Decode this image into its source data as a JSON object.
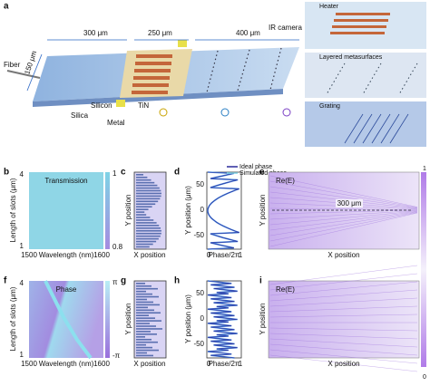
{
  "panel_a": {
    "label": "a",
    "fiber": "Fiber",
    "dim_1": "300 μm",
    "dim_2": "250 μm",
    "dim_3": "400 μm",
    "camera": "IR camera",
    "width": "150 μm",
    "silicon": "Silicon",
    "silica": "Silica",
    "metal": "Metal",
    "tin": "TiN",
    "insets": [
      "Heater",
      "Layered metasurfaces",
      "Grating"
    ]
  },
  "panel_b": {
    "label": "b",
    "title": "Transmission",
    "y_label": "Length of slots (μm)",
    "y_ticks": [
      4,
      1
    ],
    "x_ticks": [
      1500,
      1600
    ],
    "x_label": "Wavelength (nm)",
    "colorbar": [
      1,
      0.8
    ]
  },
  "panel_c": {
    "label": "c",
    "y_label": "Y position",
    "x_label": "X position"
  },
  "panel_d": {
    "label": "d",
    "legend": [
      "Ideal phase",
      "Simulated phase"
    ],
    "y_label": "Y position (μm)",
    "y_ticks": [
      50,
      0,
      -50
    ],
    "x_ticks": [
      0,
      1
    ],
    "x_label": "Phase/2π"
  },
  "panel_e": {
    "label": "e",
    "title": "Re(E)",
    "annotation": "300 μm",
    "y_label": "Y position",
    "x_label": "X position",
    "colorbar": [
      1,
      0
    ]
  },
  "panel_f": {
    "label": "f",
    "title": "Phase",
    "y_label": "Length of slots (μm)",
    "y_ticks": [
      4,
      1
    ],
    "x_ticks": [
      1500,
      1600
    ],
    "x_label": "Wavelength (nm)",
    "colorbar": [
      "π",
      "-π"
    ]
  },
  "panel_g": {
    "label": "g",
    "y_label": "Y position",
    "x_label": "X position"
  },
  "panel_h": {
    "label": "h",
    "y_label": "Y position (μm)",
    "y_ticks": [
      50,
      0,
      -50
    ],
    "x_ticks": [
      0,
      1
    ],
    "x_label": "Phase/2π"
  },
  "panel_i": {
    "label": "i",
    "title": "Re(E)",
    "y_label": "Y position",
    "x_label": "X position"
  }
}
